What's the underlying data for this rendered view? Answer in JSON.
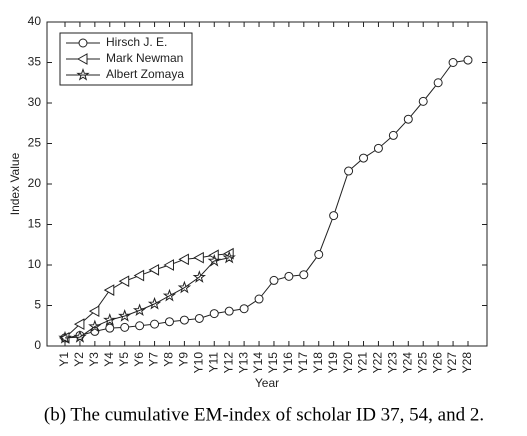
{
  "chart_data": {
    "type": "line",
    "x_label": "Year",
    "y_label": "Index Value",
    "caption": "(b) The cumulative EM-index of scholar ID 37, 54, and 2.",
    "categories": [
      "Y1",
      "Y2",
      "Y3",
      "Y4",
      "Y5",
      "Y6",
      "Y7",
      "Y8",
      "Y9",
      "Y10",
      "Y11",
      "Y12",
      "Y13",
      "Y14",
      "Y15",
      "Y16",
      "Y17",
      "Y18",
      "Y19",
      "Y20",
      "Y21",
      "Y22",
      "Y23",
      "Y24",
      "Y25",
      "Y26",
      "Y27",
      "Y28"
    ],
    "series": [
      {
        "name": "Hirsch J. E.",
        "color": "#222222",
        "marker": "circle",
        "values": [
          1,
          1.3,
          1.8,
          2.2,
          2.3,
          2.5,
          2.7,
          3.0,
          3.2,
          3.4,
          4.0,
          4.3,
          4.6,
          5.8,
          8.1,
          8.6,
          8.8,
          11.3,
          16.1,
          21.6,
          23.2,
          24.4,
          26.0,
          28.0,
          30.2,
          32.5,
          35.0,
          35.3
        ]
      },
      {
        "name": "Mark Newman",
        "color": "#222222",
        "marker": "triangle-left",
        "values": [
          1,
          2.7,
          4.3,
          6.9,
          8.0,
          8.7,
          9.4,
          10.0,
          10.7,
          10.9,
          11.2,
          11.4,
          null,
          null,
          null,
          null,
          null,
          null,
          null,
          null,
          null,
          null,
          null,
          null,
          null,
          null,
          null,
          null
        ]
      },
      {
        "name": "Albert Zomaya",
        "color": "#222222",
        "marker": "star",
        "values": [
          1,
          1.1,
          2.4,
          3.2,
          3.7,
          4.4,
          5.2,
          6.2,
          7.2,
          8.5,
          10.5,
          10.9,
          null,
          null,
          null,
          null,
          null,
          null,
          null,
          null,
          null,
          null,
          null,
          null,
          null,
          null,
          null,
          null
        ]
      }
    ],
    "ylim": [
      0,
      40
    ],
    "yticks": [
      0,
      5,
      10,
      15,
      20,
      25,
      30,
      35,
      40
    ],
    "legend": "upper left",
    "grid": false
  }
}
